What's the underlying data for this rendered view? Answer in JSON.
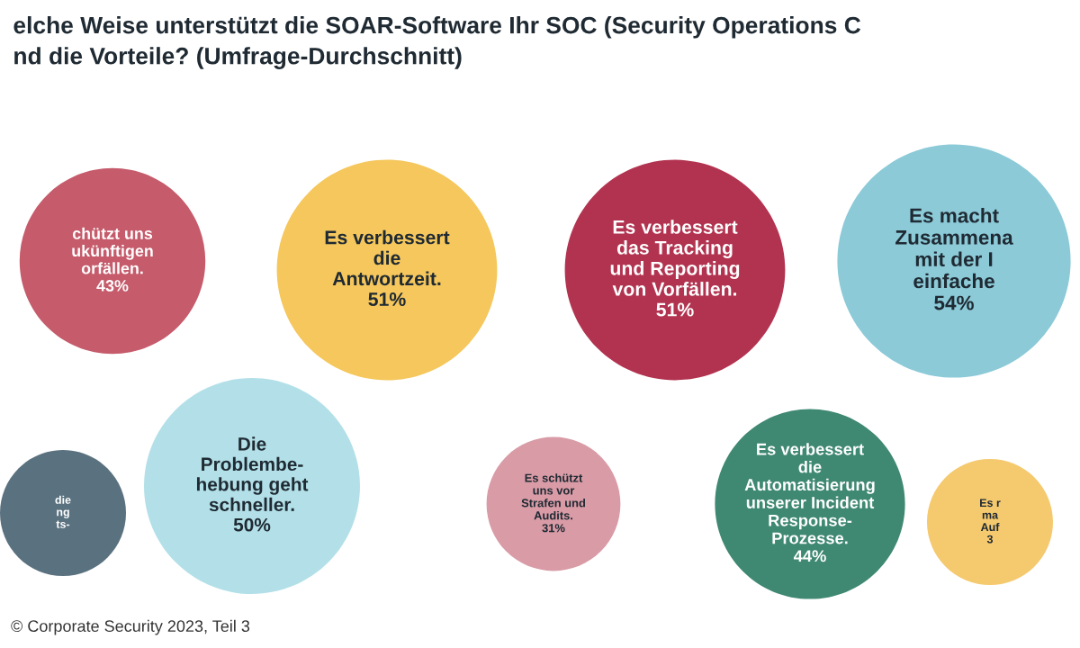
{
  "chart_data": {
    "type": "other",
    "title": "elche Weise unterstützt die SOAR-Software Ihr SOC (Security Operations C\nnd die Vorteile? (Umfrage-Durchschnitt)",
    "categories": [
      "chützt uns\nukünftigen\norfällen.",
      "Es verbessert\ndie\nAntwortzeit.",
      "Es verbessert\ndas Tracking\nund Reporting\nvon Vorfällen.",
      "Es macht\nZusammena\nmit der I\neinfache",
      "die\nng\nts-",
      "Die\nProblembe-\nhebung geht\nschneller.",
      "Es schützt\nuns vor\nStrafen und\nAudits.",
      "Es verbessert\ndie\nAutomatisierung\nunserer Incident\nResponse-\nProzesse.",
      "Es r\nma\nAuf"
    ],
    "values": [
      43,
      51,
      51,
      54,
      null,
      50,
      31,
      44,
      null
    ],
    "value_labels": [
      "43%",
      "51%",
      "51%",
      "54%",
      null,
      "50%",
      "31%",
      "44%",
      "3"
    ],
    "colors": [
      "#c55b6b",
      "#f5c75c",
      "#b23350",
      "#8ccad8",
      "#5a717f",
      "#b3e0e8",
      "#d99ba6",
      "#3f8872",
      "#f5c96e"
    ],
    "annotations": [
      "© Corporate Security 2023, Teil 3"
    ]
  }
}
